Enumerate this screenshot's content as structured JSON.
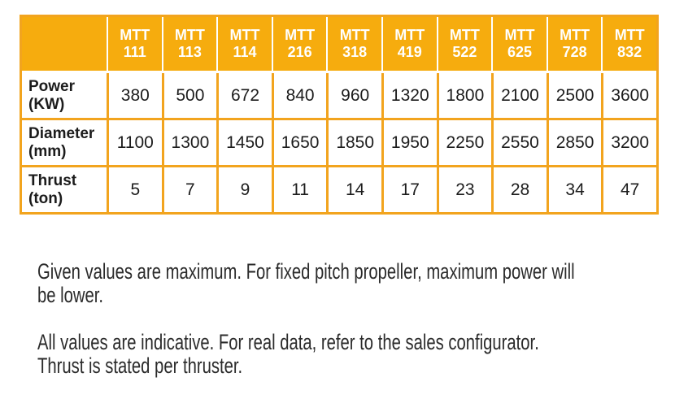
{
  "colors": {
    "header_bg": "#F6AC0E",
    "grid_border": "#F2A41E",
    "header_text": "#ffffff",
    "body_text": "#1c1c1c",
    "note_text": "#2b2b2b"
  },
  "table": {
    "corner_label": "",
    "columns": [
      {
        "brand": "MTT",
        "model": "111"
      },
      {
        "brand": "MTT",
        "model": "113"
      },
      {
        "brand": "MTT",
        "model": "114"
      },
      {
        "brand": "MTT",
        "model": "216"
      },
      {
        "brand": "MTT",
        "model": "318"
      },
      {
        "brand": "MTT",
        "model": "419"
      },
      {
        "brand": "MTT",
        "model": "522"
      },
      {
        "brand": "MTT",
        "model": "625"
      },
      {
        "brand": "MTT",
        "model": "728"
      },
      {
        "brand": "MTT",
        "model": "832"
      }
    ],
    "rows": [
      {
        "label_line1": "Power",
        "label_line2": "(KW)",
        "values": [
          "380",
          "500",
          "672",
          "840",
          "960",
          "1320",
          "1800",
          "2100",
          "2500",
          "3600"
        ]
      },
      {
        "label_line1": "Diameter",
        "label_line2": "(mm)",
        "values": [
          "1100",
          "1300",
          "1450",
          "1650",
          "1850",
          "1950",
          "2250",
          "2550",
          "2850",
          "3200"
        ]
      },
      {
        "label_line1": "Thrust",
        "label_line2": "(ton)",
        "values": [
          "5",
          "7",
          "9",
          "11",
          "14",
          "17",
          "23",
          "28",
          "34",
          "47"
        ]
      }
    ]
  },
  "notes": {
    "para1": {
      "line1": "Given values are maximum. For fixed pitch propeller, maximum power will",
      "line2": "be lower."
    },
    "para2": {
      "line1": "All values are indicative. For real data, refer to the sales configurator.",
      "line2": "Thrust is stated per thruster."
    }
  },
  "chart_data": {
    "type": "table",
    "title": "",
    "columns": [
      "",
      "MTT 111",
      "MTT 113",
      "MTT 114",
      "MTT 216",
      "MTT 318",
      "MTT 419",
      "MTT 522",
      "MTT 625",
      "MTT 728",
      "MTT 832"
    ],
    "rows": [
      [
        "Power (KW)",
        380,
        500,
        672,
        840,
        960,
        1320,
        1800,
        2100,
        2500,
        3600
      ],
      [
        "Diameter (mm)",
        1100,
        1300,
        1450,
        1650,
        1850,
        1950,
        2250,
        2550,
        2850,
        3200
      ],
      [
        "Thrust (ton)",
        5,
        7,
        9,
        11,
        14,
        17,
        23,
        28,
        34,
        47
      ]
    ],
    "layout_hints": {
      "header_background": "#F6AC0E",
      "grid_color": "#F2A41E",
      "header_text_color": "#ffffff"
    }
  }
}
